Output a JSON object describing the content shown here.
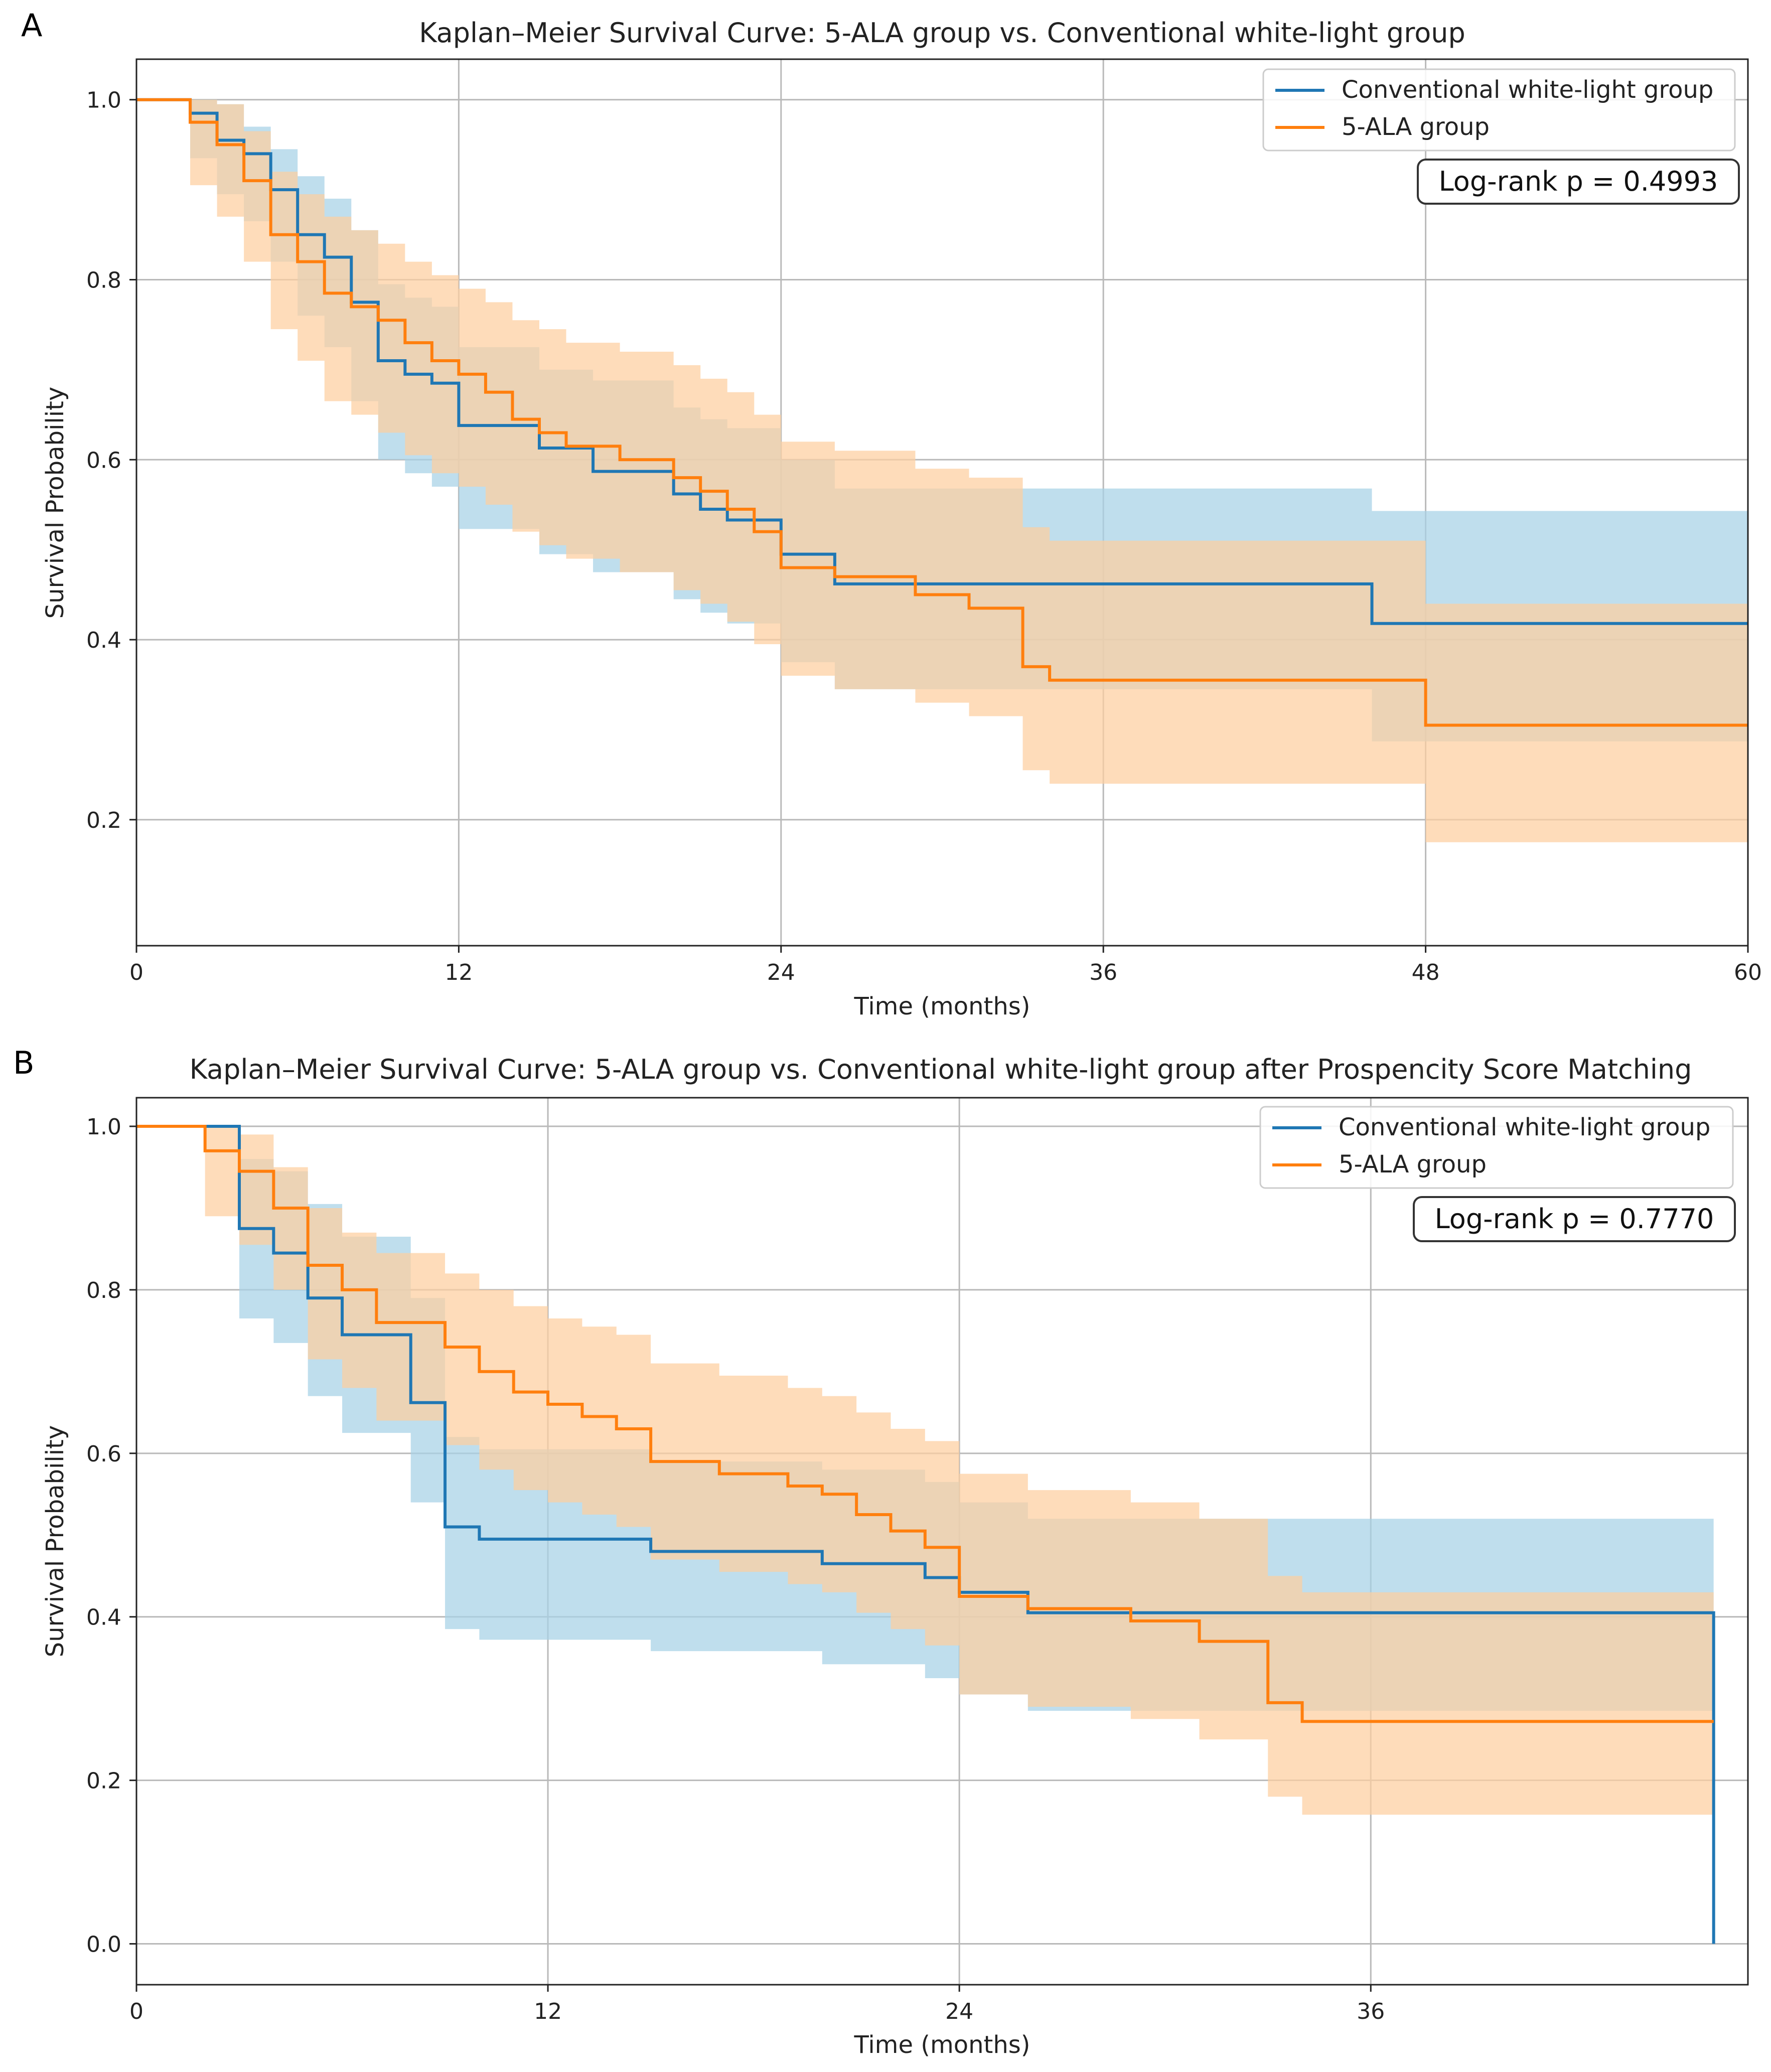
{
  "figure": {
    "panels": [
      "A",
      "B"
    ]
  },
  "colors": {
    "conventional": "#1f77b4",
    "conventional_ci": "#a6d1e6",
    "ala": "#ff7f0e",
    "ala_ci": "#fdcf9f"
  },
  "chart_data": [
    {
      "panel": "A",
      "type": "line",
      "subtype": "kaplan-meier step curve with confidence bands",
      "title": "Kaplan–Meier Survival Curve: 5-ALA group vs. Conventional white-light group",
      "xlabel": "Time (months)",
      "ylabel": "Survival Probability",
      "xlim": [
        0,
        60
      ],
      "ylim": [
        0.06,
        1.045
      ],
      "xticks": [
        0,
        12,
        24,
        36,
        48,
        60
      ],
      "yticks": [
        0.2,
        0.4,
        0.6,
        0.8,
        1.0
      ],
      "ytick_labels": [
        "0.2",
        "0.4",
        "0.6",
        "0.8",
        "1.0"
      ],
      "grid": true,
      "legend_position": "top-right",
      "annotation": "Log-rank p = 0.4993",
      "series": [
        {
          "name": "Conventional white-light group",
          "color_key": "conventional",
          "times": [
            0,
            2,
            3,
            4,
            5,
            6,
            7,
            8,
            9,
            10,
            11,
            12,
            15,
            17,
            20,
            21,
            22,
            24,
            26,
            46,
            60
          ],
          "survival": [
            1.0,
            0.985,
            0.955,
            0.94,
            0.9,
            0.85,
            0.825,
            0.775,
            0.71,
            0.695,
            0.685,
            0.638,
            0.613,
            0.587,
            0.562,
            0.545,
            0.533,
            0.495,
            0.462,
            0.418,
            0.418
          ],
          "ci_lower": [
            1.0,
            0.935,
            0.895,
            0.865,
            0.82,
            0.76,
            0.725,
            0.665,
            0.6,
            0.585,
            0.57,
            0.523,
            0.495,
            0.475,
            0.445,
            0.43,
            0.418,
            0.375,
            0.345,
            0.287,
            0.287
          ],
          "ci_upper": [
            1.0,
            1.0,
            0.995,
            0.97,
            0.945,
            0.915,
            0.89,
            0.855,
            0.795,
            0.78,
            0.77,
            0.725,
            0.7,
            0.688,
            0.658,
            0.645,
            0.635,
            0.6,
            0.568,
            0.543,
            0.543
          ]
        },
        {
          "name": "5-ALA group",
          "color_key": "ala",
          "times": [
            0,
            2,
            3,
            4,
            5,
            6,
            7,
            8,
            9,
            10,
            11,
            12,
            13,
            14,
            15,
            16,
            18,
            20,
            21,
            22,
            23,
            24,
            26,
            29,
            31,
            33,
            34,
            48,
            60
          ],
          "survival": [
            1.0,
            0.975,
            0.95,
            0.91,
            0.85,
            0.82,
            0.785,
            0.77,
            0.755,
            0.73,
            0.71,
            0.695,
            0.675,
            0.645,
            0.63,
            0.615,
            0.6,
            0.58,
            0.565,
            0.545,
            0.52,
            0.48,
            0.47,
            0.45,
            0.435,
            0.37,
            0.355,
            0.305,
            0.305
          ],
          "ci_lower": [
            1.0,
            0.905,
            0.87,
            0.82,
            0.745,
            0.71,
            0.665,
            0.65,
            0.63,
            0.605,
            0.585,
            0.57,
            0.55,
            0.52,
            0.505,
            0.49,
            0.475,
            0.455,
            0.44,
            0.42,
            0.395,
            0.36,
            0.345,
            0.33,
            0.315,
            0.255,
            0.24,
            0.175,
            0.175
          ],
          "ci_upper": [
            1.0,
            1.0,
            0.995,
            0.965,
            0.92,
            0.895,
            0.87,
            0.855,
            0.84,
            0.82,
            0.805,
            0.79,
            0.775,
            0.755,
            0.745,
            0.73,
            0.72,
            0.705,
            0.69,
            0.675,
            0.65,
            0.62,
            0.61,
            0.59,
            0.58,
            0.525,
            0.51,
            0.44,
            0.44
          ]
        }
      ]
    },
    {
      "panel": "B",
      "type": "line",
      "subtype": "kaplan-meier step curve with confidence bands",
      "title": "Kaplan–Meier Survival Curve: 5-ALA group vs. Conventional white-light group after Prospencity Score Matching",
      "xlabel": "Time (months)",
      "ylabel": "Survival Probability",
      "xlim": [
        0,
        47
      ],
      "ylim": [
        -0.05,
        1.035
      ],
      "xticks": [
        0,
        12,
        24,
        36
      ],
      "yticks": [
        0.0,
        0.2,
        0.4,
        0.6,
        0.8,
        1.0
      ],
      "ytick_labels": [
        "0.0",
        "0.2",
        "0.4",
        "0.6",
        "0.8",
        "1.0"
      ],
      "grid": true,
      "legend_position": "top-right",
      "annotation": "Log-rank p = 0.7770",
      "series": [
        {
          "name": "Conventional white-light group",
          "color_key": "conventional",
          "times": [
            0,
            3,
            4,
            5,
            6,
            8,
            9,
            10,
            15,
            20,
            23,
            24,
            26,
            46
          ],
          "survival": [
            1.0,
            0.875,
            0.845,
            0.79,
            0.745,
            0.662,
            0.51,
            0.495,
            0.48,
            0.465,
            0.448,
            0.43,
            0.405,
            0.0
          ],
          "ci_lower": [
            1.0,
            0.765,
            0.735,
            0.67,
            0.625,
            0.54,
            0.385,
            0.372,
            0.358,
            0.342,
            0.325,
            0.305,
            0.285,
            0.285
          ],
          "ci_upper": [
            1.0,
            0.96,
            0.945,
            0.905,
            0.865,
            0.79,
            0.62,
            0.605,
            0.59,
            0.58,
            0.565,
            0.54,
            0.52,
            0.52
          ]
        },
        {
          "name": "5-ALA group",
          "color_key": "ala",
          "times": [
            0,
            2,
            3,
            4,
            5,
            6,
            7,
            9,
            10,
            11,
            12,
            13,
            14,
            15,
            17,
            19,
            20,
            21,
            22,
            23,
            24,
            26,
            29,
            31,
            33,
            34,
            46
          ],
          "survival": [
            1.0,
            0.97,
            0.945,
            0.9,
            0.83,
            0.8,
            0.76,
            0.73,
            0.7,
            0.675,
            0.66,
            0.645,
            0.63,
            0.59,
            0.575,
            0.56,
            0.55,
            0.525,
            0.505,
            0.485,
            0.425,
            0.41,
            0.395,
            0.37,
            0.295,
            0.272,
            0.272
          ],
          "ci_lower": [
            1.0,
            0.89,
            0.855,
            0.8,
            0.715,
            0.68,
            0.64,
            0.61,
            0.58,
            0.555,
            0.54,
            0.525,
            0.51,
            0.47,
            0.455,
            0.44,
            0.43,
            0.405,
            0.385,
            0.365,
            0.305,
            0.29,
            0.275,
            0.25,
            0.18,
            0.158,
            0.158
          ],
          "ci_upper": [
            1.0,
            1.0,
            0.99,
            0.95,
            0.9,
            0.87,
            0.845,
            0.82,
            0.8,
            0.78,
            0.765,
            0.755,
            0.745,
            0.71,
            0.695,
            0.68,
            0.67,
            0.65,
            0.63,
            0.615,
            0.575,
            0.555,
            0.54,
            0.52,
            0.45,
            0.43,
            0.4
          ]
        }
      ]
    }
  ]
}
